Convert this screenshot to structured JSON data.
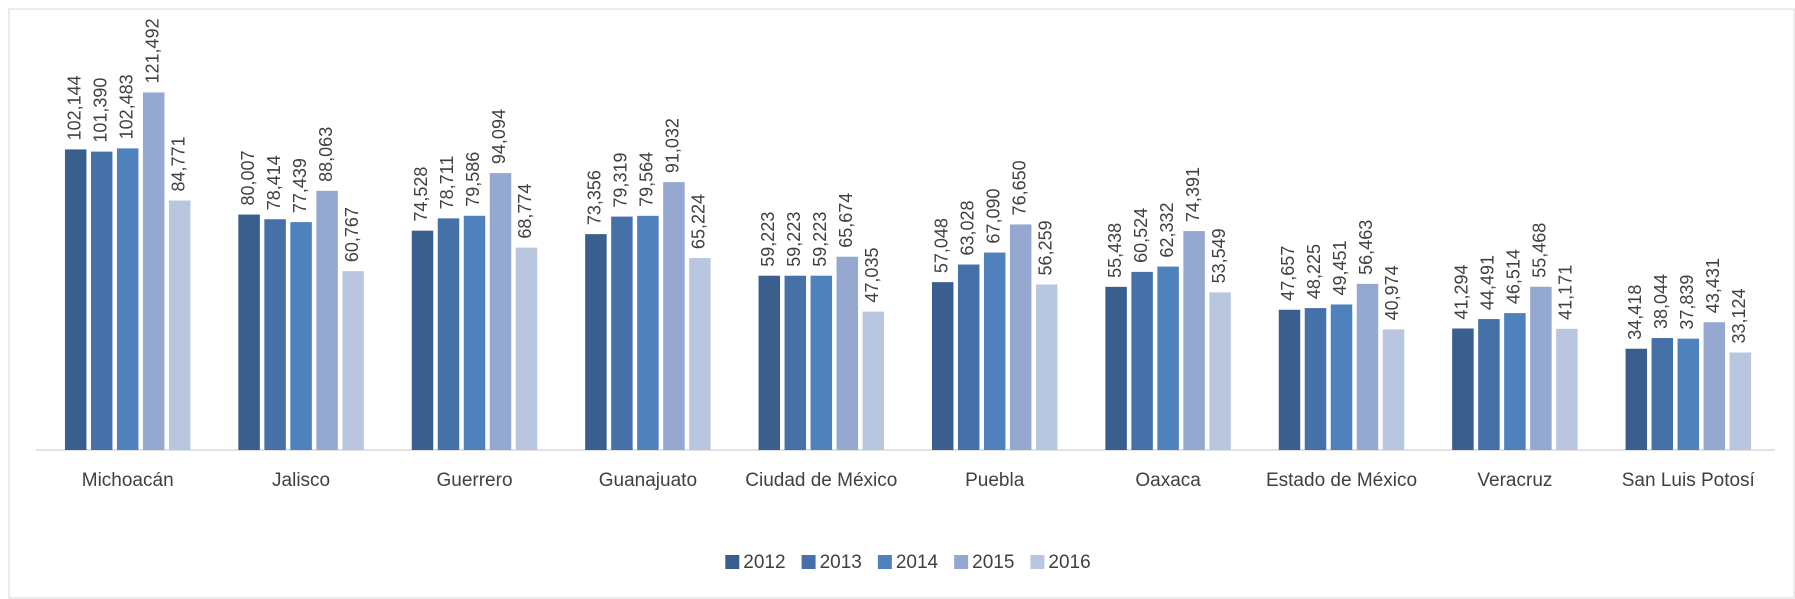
{
  "chart_data": {
    "type": "bar",
    "categories": [
      "Michoacán",
      "Jalisco",
      "Guerrero",
      "Guanajuato",
      "Ciudad de México",
      "Puebla",
      "Oaxaca",
      "Estado de México",
      "Veracruz",
      "San Luis Potosí"
    ],
    "series": [
      {
        "name": "2012",
        "color": "#3a5f8f",
        "values": [
          102144,
          80007,
          74528,
          73356,
          59223,
          57048,
          55438,
          47657,
          41294,
          34418
        ],
        "value_labels": [
          "102,144",
          "80,007",
          "74,528",
          "73,356",
          "59,223",
          "57,048",
          "55,438",
          "47,657",
          "41,294",
          "34,418"
        ]
      },
      {
        "name": "2013",
        "color": "#4571a8",
        "values": [
          101390,
          78414,
          78711,
          79319,
          59223,
          63028,
          60524,
          48225,
          44491,
          38044
        ],
        "value_labels": [
          "101,390",
          "78,414",
          "78,711",
          "79,319",
          "59,223",
          "63,028",
          "60,524",
          "48,225",
          "44,491",
          "38,044"
        ]
      },
      {
        "name": "2014",
        "color": "#4f81bd",
        "values": [
          102483,
          77439,
          79586,
          79564,
          59223,
          67090,
          62332,
          49451,
          46514,
          37839
        ],
        "value_labels": [
          "102,483",
          "77,439",
          "79,586",
          "79,564",
          "59,223",
          "67,090",
          "62,332",
          "49,451",
          "46,514",
          "37,839"
        ]
      },
      {
        "name": "2015",
        "color": "#95a9d0",
        "values": [
          121492,
          88063,
          94094,
          91032,
          65674,
          76650,
          74391,
          56463,
          55468,
          43431
        ],
        "value_labels": [
          "121,492",
          "88,063",
          "94,094",
          "91,032",
          "65,674",
          "76,650",
          "74,391",
          "56,463",
          "55,468",
          "43,431"
        ]
      },
      {
        "name": "2016",
        "color": "#b9c6e0",
        "values": [
          84771,
          60767,
          68774,
          65224,
          47035,
          56259,
          53549,
          40974,
          41171,
          33124
        ],
        "value_labels": [
          "84,771",
          "60,767",
          "68,774",
          "65,224",
          "47,035",
          "56,259",
          "53,549",
          "40,974",
          "41,171",
          "33,124"
        ]
      }
    ],
    "ylim": [
      0,
      140000
    ],
    "legend": "bottom"
  }
}
